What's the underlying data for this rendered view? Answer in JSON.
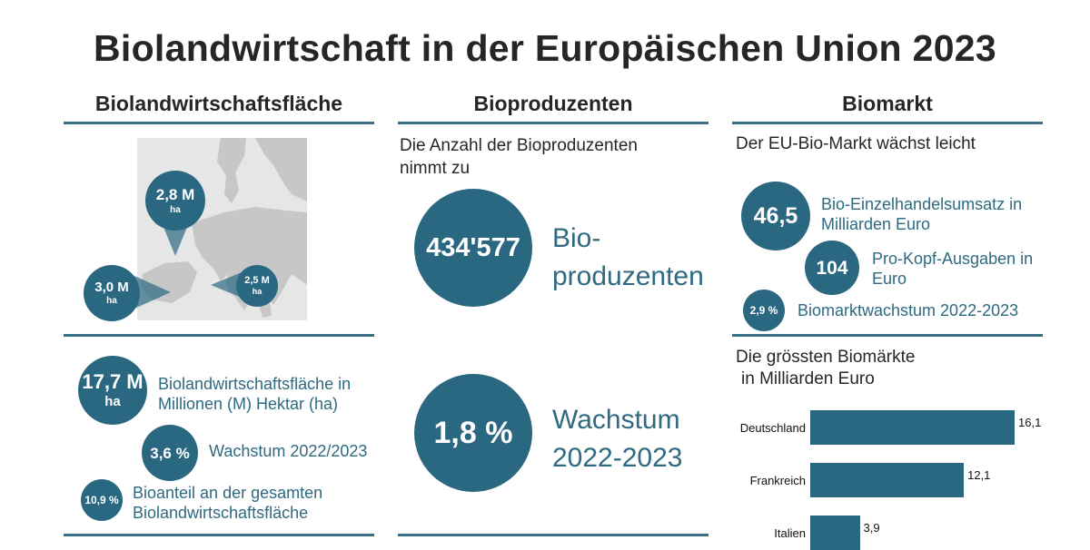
{
  "title": "Biolandwirtschaft in der Europäischen Union 2023",
  "columns": {
    "area": {
      "heading": "Biolandwirtschaftsfläche",
      "map_markers": [
        {
          "value": "2,8 M",
          "unit": "ha"
        },
        {
          "value": "3,0 M",
          "unit": "ha"
        },
        {
          "value": "2,5 M",
          "unit": "ha"
        }
      ],
      "stats": [
        {
          "value": "17,7 M",
          "unit": "ha",
          "label": "Biolandwirtschaftsfläche in Millionen (M) Hektar (ha)"
        },
        {
          "value": "3,6 %",
          "label": "Wachstum 2022/2023"
        },
        {
          "value": "10,9 %",
          "label": "Bioanteil an der gesamten Biolandwirtschaftsfläche"
        }
      ]
    },
    "producers": {
      "heading": "Bioproduzenten",
      "subtitle": "Die Anzahl der Bioproduzenten nimmt zu",
      "count": {
        "value": "434'577",
        "label_line1": "Bio-",
        "label_line2": "produzenten"
      },
      "growth": {
        "value": "1,8 %",
        "label_line1": "Wachstum",
        "label_line2": "2022-2023"
      }
    },
    "market": {
      "heading": "Biomarkt",
      "subtitle": "Der EU-Bio-Markt wächst leicht",
      "stats": [
        {
          "value": "46,5",
          "label": "Bio-Einzelhandelsumsatz in Milliarden Euro"
        },
        {
          "value": "104",
          "label": "Pro-Kopf-Ausgaben in Euro"
        },
        {
          "value": "2,9 %",
          "label": "Biomarktwachstum 2022-2023"
        }
      ],
      "chart_title_line1": "Die grössten Biomärkte",
      "chart_title_line2": "in Milliarden Euro"
    }
  },
  "chart_data": {
    "type": "bar",
    "orientation": "horizontal",
    "title": "Die grössten Biomärkte in Milliarden Euro",
    "categories": [
      "Deutschland",
      "Frankreich",
      "Italien"
    ],
    "values": [
      16.1,
      12.1,
      3.9
    ],
    "value_labels": [
      "16,1",
      "12,1",
      "3,9"
    ],
    "xlim": [
      0,
      16.1
    ]
  },
  "colors": {
    "accent": "#2a6882",
    "rule": "#3b6f86",
    "text_teal": "#2f6a81"
  }
}
